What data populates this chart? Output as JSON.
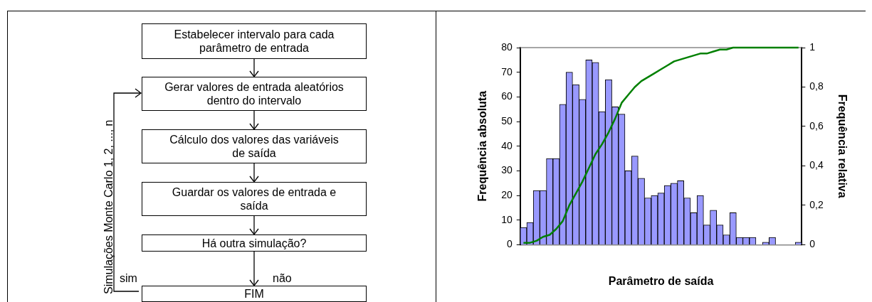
{
  "chart_data": [
    {
      "type": "other",
      "annotations": [
        "Estabelecer intervalo para cada parâmetro de entrada",
        "Gerar valores de entrada aleatórios dentro do intervalo",
        "Cálculo dos valores das variáveis de saída",
        "Guardar os valores de entrada e saída",
        "Há outra simulação?",
        "FIM",
        "Simulações Monte Carlo 1, 2, ..., n",
        "sim",
        "não"
      ]
    },
    {
      "type": "bar",
      "xlabel": "Parâmetro de saída",
      "ylabel": "Frequência absoluta",
      "y2label": "Frequência relativa",
      "categories": [
        null,
        null,
        null,
        null,
        null,
        null,
        null,
        null,
        null,
        null,
        null,
        null,
        null,
        null,
        null,
        null,
        null,
        null,
        null,
        null,
        null,
        null,
        null,
        null,
        null,
        null,
        null,
        null,
        null,
        null,
        null,
        null,
        null,
        null,
        null,
        null,
        null,
        null,
        null,
        null,
        null,
        null,
        null
      ],
      "series": [
        {
          "type": "bar",
          "color": "#9999ff",
          "values": [
            7,
            9,
            22,
            22,
            35,
            35,
            57,
            70,
            65,
            59,
            75,
            74,
            54,
            67,
            56,
            53,
            30,
            36,
            27,
            19,
            20,
            21,
            24,
            25,
            26,
            19,
            13,
            20,
            8,
            14,
            8,
            4,
            13,
            3,
            3,
            3,
            0,
            1,
            3,
            0,
            0,
            0,
            1
          ]
        },
        {
          "type": "line",
          "axis": "y2",
          "color": "#008000",
          "values": [
            0.01,
            0.01,
            0.02,
            0.04,
            0.05,
            0.08,
            0.12,
            0.2,
            0.26,
            0.32,
            0.39,
            0.46,
            0.51,
            0.57,
            0.64,
            0.72,
            0.76,
            0.8,
            0.83,
            0.85,
            0.87,
            0.89,
            0.91,
            0.93,
            0.94,
            0.95,
            0.96,
            0.97,
            0.97,
            0.98,
            0.99,
            0.99,
            1,
            1,
            1,
            1,
            1,
            1,
            1,
            1,
            1,
            1,
            1
          ]
        }
      ],
      "ylim": [
        0,
        80
      ],
      "yticks": [
        0,
        10,
        20,
        30,
        40,
        50,
        60,
        70,
        80
      ],
      "y2lim": [
        0,
        1
      ],
      "y2ticks": [
        0,
        {
          "value": 0.2,
          "label": "0,2"
        },
        {
          "value": 0.4,
          "label": "0,4"
        },
        {
          "value": 0.6,
          "label": "0,6"
        },
        {
          "value": 0.8,
          "label": "0,8"
        },
        1
      ],
      "grid": false,
      "legend": false,
      "marker": "none",
      "line_style": "solid"
    }
  ]
}
